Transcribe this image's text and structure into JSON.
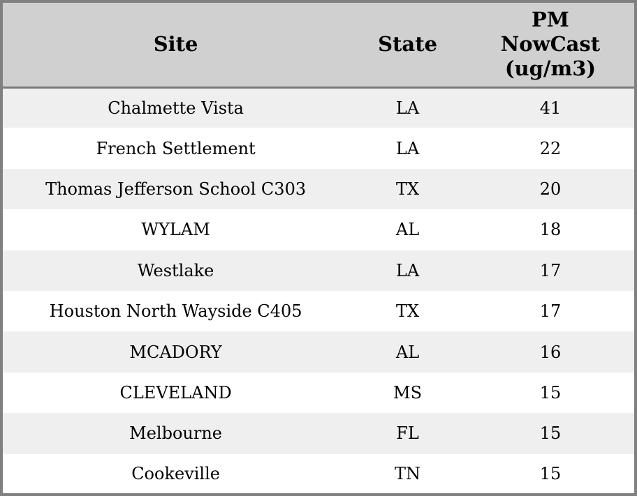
{
  "chart_data": {
    "type": "table",
    "title": "",
    "columns": [
      {
        "label": "Site"
      },
      {
        "label": "State"
      },
      {
        "label": "PM\nNowCast\n(ug/m3)",
        "label_flat": "PM NowCast (ug/m3)"
      }
    ],
    "rows": [
      {
        "site": "Chalmette Vista",
        "state": "LA",
        "pm_nowcast": 41
      },
      {
        "site": "French Settlement",
        "state": "LA",
        "pm_nowcast": 22
      },
      {
        "site": "Thomas Jefferson School C303",
        "state": "TX",
        "pm_nowcast": 20
      },
      {
        "site": "WYLAM",
        "state": "AL",
        "pm_nowcast": 18
      },
      {
        "site": "Westlake",
        "state": "LA",
        "pm_nowcast": 17
      },
      {
        "site": "Houston North Wayside C405",
        "state": "TX",
        "pm_nowcast": 17
      },
      {
        "site": "MCADORY",
        "state": "AL",
        "pm_nowcast": 16
      },
      {
        "site": "CLEVELAND",
        "state": "MS",
        "pm_nowcast": 15
      },
      {
        "site": "Melbourne",
        "state": "FL",
        "pm_nowcast": 15
      },
      {
        "site": "Cookeville",
        "state": "TN",
        "pm_nowcast": 15
      }
    ],
    "layout": {
      "grid": "alternating-row-shading",
      "alignment": "center"
    }
  },
  "colors": {
    "header_bg": "#d0d0d0",
    "row_alt_bg": "#efefef",
    "row_bg": "#ffffff",
    "outer_border": "#808080",
    "header_separator": "#7b7b7b",
    "text": "#000000"
  }
}
